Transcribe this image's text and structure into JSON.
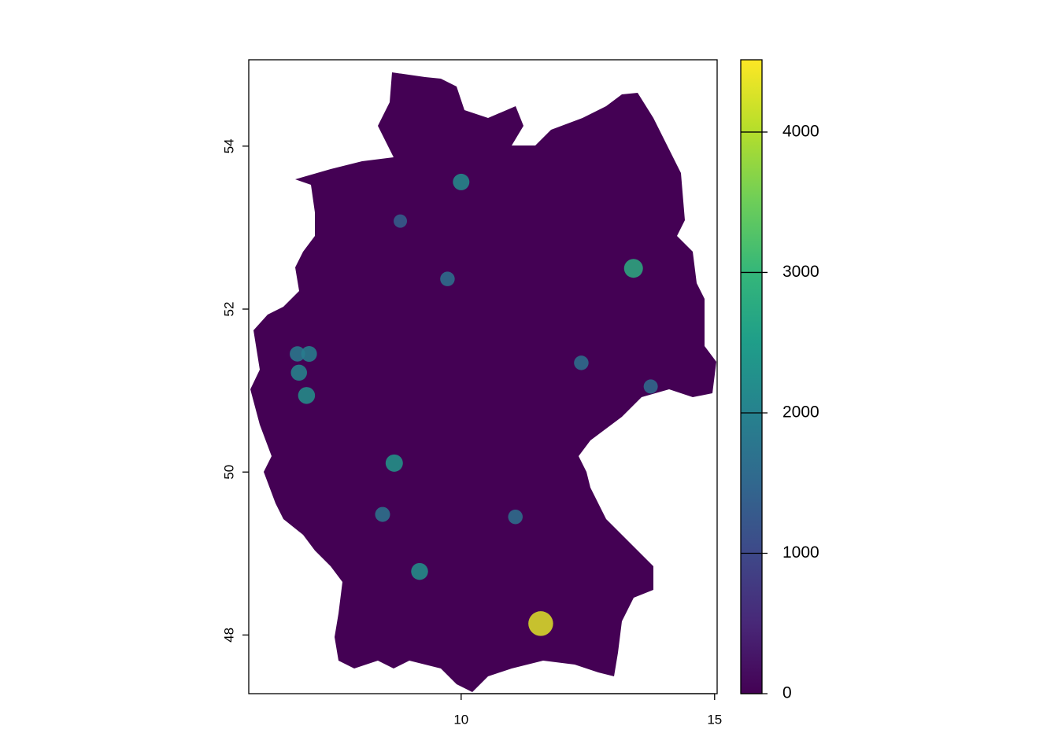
{
  "chart_data": {
    "type": "raster",
    "xlim": [
      5.81,
      15.05
    ],
    "xticks": [
      10,
      15
    ],
    "ylim": [
      47.28,
      55.06
    ],
    "yticks": [
      48,
      50,
      52,
      54
    ],
    "clim": [
      0,
      4515
    ],
    "cticks": [
      0,
      1000,
      2000,
      3000,
      4000
    ],
    "colors": [
      "#440154",
      "#482878",
      "#3e4989",
      "#31688e",
      "#26828e",
      "#1f9e89",
      "#35b779",
      "#6ece58",
      "#b5de2b",
      "#fde725"
    ],
    "points": {
      "x": [
        13.4,
        11.57,
        10.0,
        6.95,
        8.68,
        9.18,
        7.0,
        6.8,
        8.45,
        12.37,
        9.73,
        11.07,
        13.74,
        6.77,
        8.8
      ],
      "y": [
        52.5,
        48.14,
        53.56,
        50.94,
        50.11,
        48.78,
        51.45,
        51.22,
        49.48,
        51.34,
        52.37,
        49.45,
        51.05,
        51.45,
        53.08
      ],
      "values": [
        2800,
        4300,
        2200,
        2300,
        2400,
        2300,
        2000,
        2100,
        1800,
        1700,
        1700,
        1700,
        1600,
        1900,
        1400
      ]
    }
  }
}
